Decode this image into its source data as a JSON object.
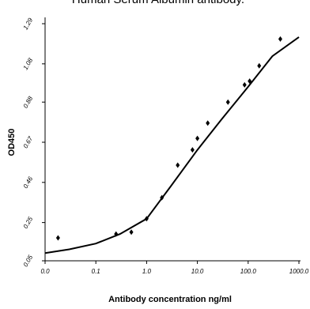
{
  "chart_data": {
    "type": "scatter",
    "title": "Human Serum Albumin antibody.",
    "x_label": "Antibody concentration  ng/ml",
    "y_label": "OD450",
    "log_x": true,
    "xlim": [
      0.01,
      1000
    ],
    "xticks": [
      {
        "value": 0.01,
        "label": "0.0"
      },
      0.1,
      {
        "value": 1,
        "label": "1.0"
      },
      {
        "value": 10,
        "label": "10.0"
      },
      {
        "value": 100,
        "label": "100.0"
      },
      {
        "value": 1000,
        "label": "1000.0"
      }
    ],
    "ylim": [
      0.05,
      1.29
    ],
    "yticks": [
      0.05,
      0.25,
      0.46,
      0.67,
      0.88,
      1.08,
      1.29
    ],
    "series": [
      {
        "color": "#000000",
        "x": [
          0.018,
          0.25,
          0.5,
          1.0,
          2,
          4.1,
          8,
          10,
          16,
          40,
          85,
          107,
          165,
          430
        ],
        "values": [
          0.17,
          0.19,
          0.2,
          0.27,
          0.38,
          0.55,
          0.63,
          0.69,
          0.77,
          0.88,
          0.97,
          0.99,
          1.07,
          1.21
        ]
      },
      {
        "type": "line",
        "color": "#000000",
        "x": [
          0.01,
          0.03,
          0.1,
          0.3,
          1,
          3,
          10,
          30,
          100,
          300,
          1000
        ],
        "values": [
          0.09,
          0.11,
          0.14,
          0.19,
          0.27,
          0.44,
          0.63,
          0.79,
          0.96,
          1.12,
          1.22
        ]
      }
    ]
  }
}
